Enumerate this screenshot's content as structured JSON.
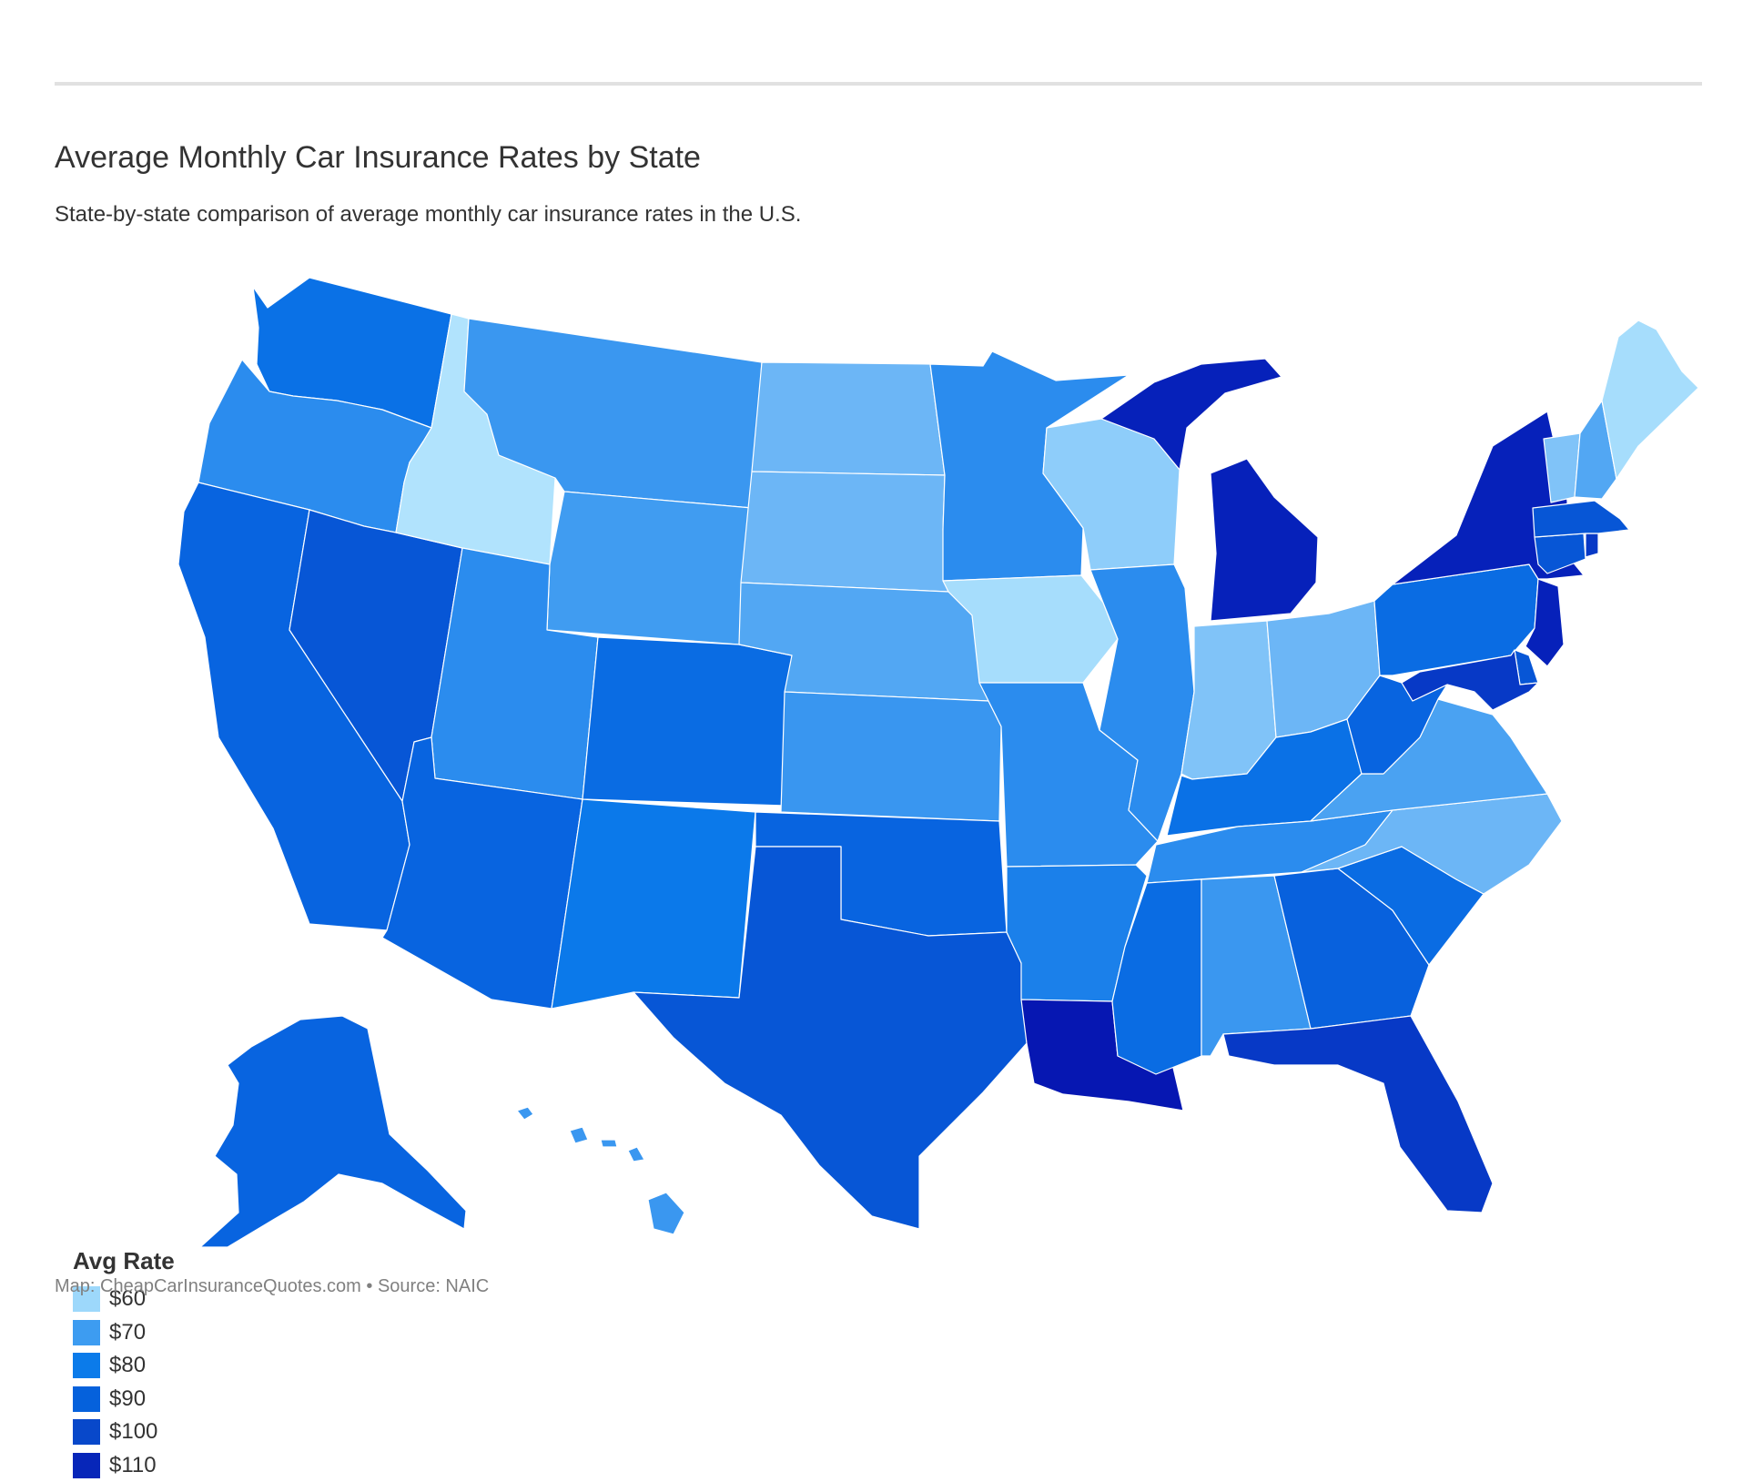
{
  "header": {
    "title": "Average Monthly Car Insurance Rates by State",
    "subtitle": "State-by-state comparison of average monthly car insurance rates in the U.S."
  },
  "legend": {
    "title": "Avg Rate",
    "items": [
      {
        "label": "$60",
        "color": "#9dd8fb"
      },
      {
        "label": "$70",
        "color": "#3d9cf1"
      },
      {
        "label": "$80",
        "color": "#0b7bea"
      },
      {
        "label": "$90",
        "color": "#0561dc"
      },
      {
        "label": "$100",
        "color": "#0848ca"
      },
      {
        "label": "$110",
        "color": "#0726b9"
      }
    ]
  },
  "colors": {
    "border": "#ffffff",
    "rule": "#e1e1e1"
  },
  "map": {
    "title": "",
    "states": [
      {
        "id": "WA",
        "fill": "#0a71e6"
      },
      {
        "id": "OR",
        "fill": "#2b8cee"
      },
      {
        "id": "CA",
        "fill": "#0864e0"
      },
      {
        "id": "NV",
        "fill": "#0756d6"
      },
      {
        "id": "ID",
        "fill": "#b1e3fd"
      },
      {
        "id": "MT",
        "fill": "#3a97f0"
      },
      {
        "id": "WY",
        "fill": "#409cf1"
      },
      {
        "id": "UT",
        "fill": "#2b8cee"
      },
      {
        "id": "AZ",
        "fill": "#0864e0"
      },
      {
        "id": "CO",
        "fill": "#0a6ce3"
      },
      {
        "id": "NM",
        "fill": "#0b79ea"
      },
      {
        "id": "ND",
        "fill": "#6cb6f6"
      },
      {
        "id": "SD",
        "fill": "#6cb6f6"
      },
      {
        "id": "NE",
        "fill": "#52a7f3"
      },
      {
        "id": "KS",
        "fill": "#3996f0"
      },
      {
        "id": "OK",
        "fill": "#0864e0"
      },
      {
        "id": "TX",
        "fill": "#0756d6"
      },
      {
        "id": "MN",
        "fill": "#2b8cee"
      },
      {
        "id": "IA",
        "fill": "#a6ddfc"
      },
      {
        "id": "MO",
        "fill": "#2b8cee"
      },
      {
        "id": "AR",
        "fill": "#1b80ea"
      },
      {
        "id": "LA",
        "fill": "#0617b2"
      },
      {
        "id": "WI",
        "fill": "#8ecdfa"
      },
      {
        "id": "IL",
        "fill": "#2b8cee"
      },
      {
        "id": "MI",
        "fill": "#0621ba"
      },
      {
        "id": "IN",
        "fill": "#80c3f8"
      },
      {
        "id": "OH",
        "fill": "#6cb6f6"
      },
      {
        "id": "KY",
        "fill": "#0a71e6"
      },
      {
        "id": "TN",
        "fill": "#2b8cee"
      },
      {
        "id": "MS",
        "fill": "#0a6ce3"
      },
      {
        "id": "AL",
        "fill": "#3a97f0"
      },
      {
        "id": "GA",
        "fill": "#0861dd"
      },
      {
        "id": "FL",
        "fill": "#0739c6"
      },
      {
        "id": "SC",
        "fill": "#0a6ce3"
      },
      {
        "id": "NC",
        "fill": "#6cb6f6"
      },
      {
        "id": "VA",
        "fill": "#4aa2f2"
      },
      {
        "id": "WV",
        "fill": "#0864e0"
      },
      {
        "id": "PA",
        "fill": "#0a6ce3"
      },
      {
        "id": "NY",
        "fill": "#0621ba"
      },
      {
        "id": "VT",
        "fill": "#80c3f8"
      },
      {
        "id": "NH",
        "fill": "#52a7f3"
      },
      {
        "id": "ME",
        "fill": "#a6ddfc"
      },
      {
        "id": "MA",
        "fill": "#0756d6"
      },
      {
        "id": "CT",
        "fill": "#0756d6"
      },
      {
        "id": "RI",
        "fill": "#0739c6"
      },
      {
        "id": "NJ",
        "fill": "#0621ba"
      },
      {
        "id": "DE",
        "fill": "#0756d6"
      },
      {
        "id": "MD",
        "fill": "#0739c6"
      },
      {
        "id": "AK",
        "fill": "#0864e0"
      },
      {
        "id": "HI",
        "fill": "#3a97f0"
      }
    ]
  },
  "footer": {
    "credit": "Map: CheapCarInsuranceQuotes.com • Source: NAIC"
  }
}
